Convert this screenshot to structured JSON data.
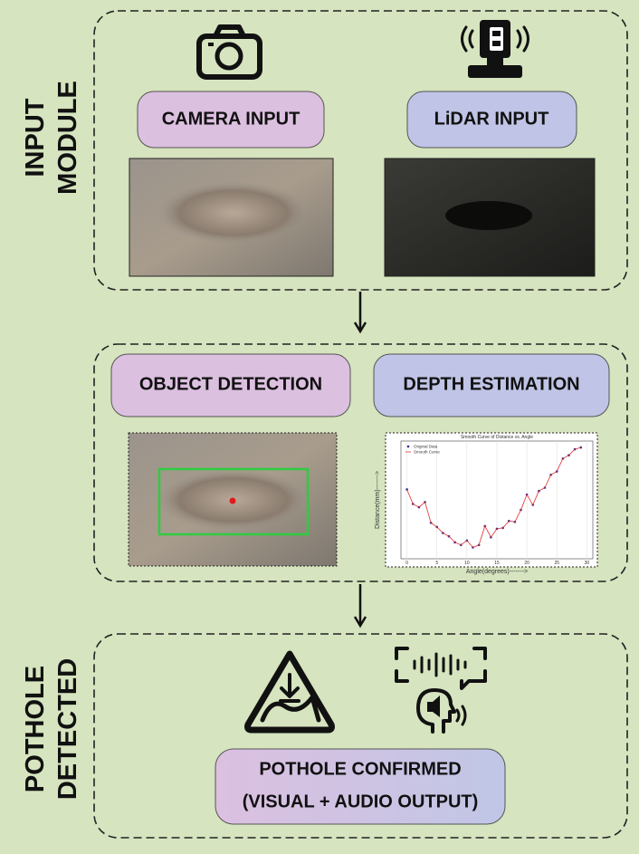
{
  "input_module": {
    "label_lines": [
      "INPUT",
      "MODULE"
    ],
    "camera": "CAMERA INPUT",
    "lidar": "LiDAR INPUT"
  },
  "processing": {
    "object_detection": "OBJECT DETECTION",
    "depth_estimation": "DEPTH ESTIMATION",
    "depth_plot": {
      "type": "line",
      "title": "Smooth Curve of Distance vs. Angle",
      "x_label": "Angle(degrees)------->",
      "y_label": "Distance(mm)------->",
      "x": [
        0,
        1,
        2,
        3,
        4,
        5,
        6,
        7,
        8,
        9,
        10,
        11,
        12,
        13,
        14,
        15,
        16,
        17,
        18,
        19,
        20,
        21,
        22,
        23,
        24,
        25,
        26,
        27,
        28,
        29
      ],
      "series": [
        {
          "name": "Original Data",
          "color": "#2c2c9c",
          "values": [
            2292,
            2227,
            2212,
            2235,
            2142,
            2123,
            2096,
            2081,
            2054,
            2042,
            2062,
            2031,
            2042,
            2127,
            2077,
            2115,
            2119,
            2150,
            2146,
            2200,
            2269,
            2223,
            2285,
            2300,
            2358,
            2373,
            2431,
            2446,
            2473,
            2481
          ]
        },
        {
          "name": "Smooth Curve",
          "color": "#e03030",
          "values": [
            2292,
            2227,
            2212,
            2235,
            2142,
            2123,
            2096,
            2081,
            2054,
            2042,
            2062,
            2031,
            2042,
            2127,
            2077,
            2115,
            2119,
            2150,
            2146,
            2200,
            2269,
            2223,
            2285,
            2300,
            2358,
            2373,
            2431,
            2446,
            2473,
            2481
          ]
        }
      ],
      "xlim": [
        -1,
        31
      ],
      "xticks": [
        0,
        5,
        10,
        15,
        20,
        25,
        30
      ],
      "ylim": [
        1980,
        2510
      ],
      "grid": true
    }
  },
  "output": {
    "label_lines": [
      "POTHOLE",
      "DETECTED"
    ],
    "confirmed_lines": [
      "POTHOLE CONFIRMED",
      "(VISUAL + AUDIO OUTPUT)"
    ]
  }
}
